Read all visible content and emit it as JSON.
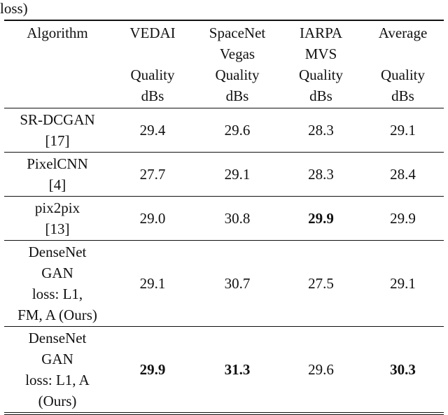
{
  "caption_tail": "loss)",
  "table": {
    "headers": [
      {
        "lines": [
          "Algorithm",
          "",
          "",
          ""
        ]
      },
      {
        "lines": [
          "VEDAI",
          "",
          "Quality",
          "dBs"
        ]
      },
      {
        "lines": [
          "SpaceNet",
          "Vegas",
          "Quality",
          "dBs"
        ]
      },
      {
        "lines": [
          "IARPA",
          "MVS",
          "Quality",
          "dBs"
        ]
      },
      {
        "lines": [
          "Average",
          "",
          "Quality",
          "dBs"
        ]
      }
    ],
    "rows": [
      {
        "algorithm": [
          "SR-DCGAN",
          "[17]"
        ],
        "values": [
          "29.4",
          "29.6",
          "28.3",
          "29.1"
        ],
        "bold": [
          false,
          false,
          false,
          false
        ]
      },
      {
        "algorithm": [
          "PixelCNN",
          "[4]"
        ],
        "values": [
          "27.7",
          "29.1",
          "28.3",
          "28.4"
        ],
        "bold": [
          false,
          false,
          false,
          false
        ]
      },
      {
        "algorithm": [
          "pix2pix",
          "[13]"
        ],
        "values": [
          "29.0",
          "30.8",
          "29.9",
          "29.9"
        ],
        "bold": [
          false,
          false,
          true,
          false
        ]
      },
      {
        "algorithm": [
          "DenseNet",
          "GAN",
          "loss: L1,",
          "FM, A (Ours)"
        ],
        "values": [
          "29.1",
          "30.7",
          "27.5",
          "29.1"
        ],
        "bold": [
          false,
          false,
          false,
          false
        ]
      },
      {
        "algorithm": [
          "DenseNet",
          "GAN",
          "loss: L1, A",
          "(Ours)"
        ],
        "values": [
          "29.9",
          "31.3",
          "29.6",
          "30.3"
        ],
        "bold": [
          true,
          true,
          false,
          true
        ]
      }
    ]
  }
}
